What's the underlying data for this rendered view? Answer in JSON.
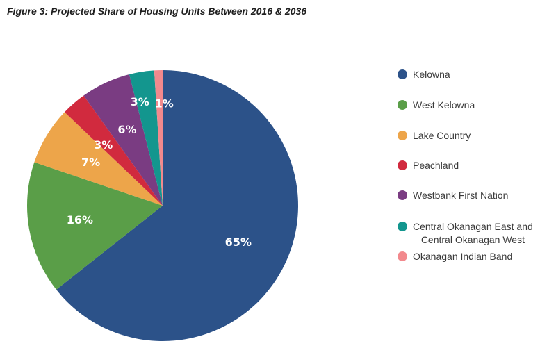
{
  "title": "Figure 3: Projected Share of Housing Units Between 2016 & 2036",
  "chart_data": {
    "type": "pie",
    "title": "Figure 3: Projected Share of Housing Units Between 2016 & 2036",
    "legend_position": "right",
    "series": [
      {
        "name": "Kelowna",
        "value": 65,
        "label": "65%",
        "color": "#2c5289"
      },
      {
        "name": "West Kelowna",
        "value": 16,
        "label": "16%",
        "color": "#5a9e48"
      },
      {
        "name": "Lake Country",
        "value": 7,
        "label": "7%",
        "color": "#eda54a"
      },
      {
        "name": "Peachland",
        "value": 3,
        "label": "3%",
        "color": "#d12a3e"
      },
      {
        "name": "Westbank First Nation",
        "value": 6,
        "label": "6%",
        "color": "#7a3c82"
      },
      {
        "name": "Central Okanagan East and\nCentral Okanagan West",
        "value": 3,
        "label": "3%",
        "color": "#13968e"
      },
      {
        "name": "Okanagan Indian Band",
        "value": 1,
        "label": "1%",
        "color": "#f2898d"
      }
    ]
  }
}
